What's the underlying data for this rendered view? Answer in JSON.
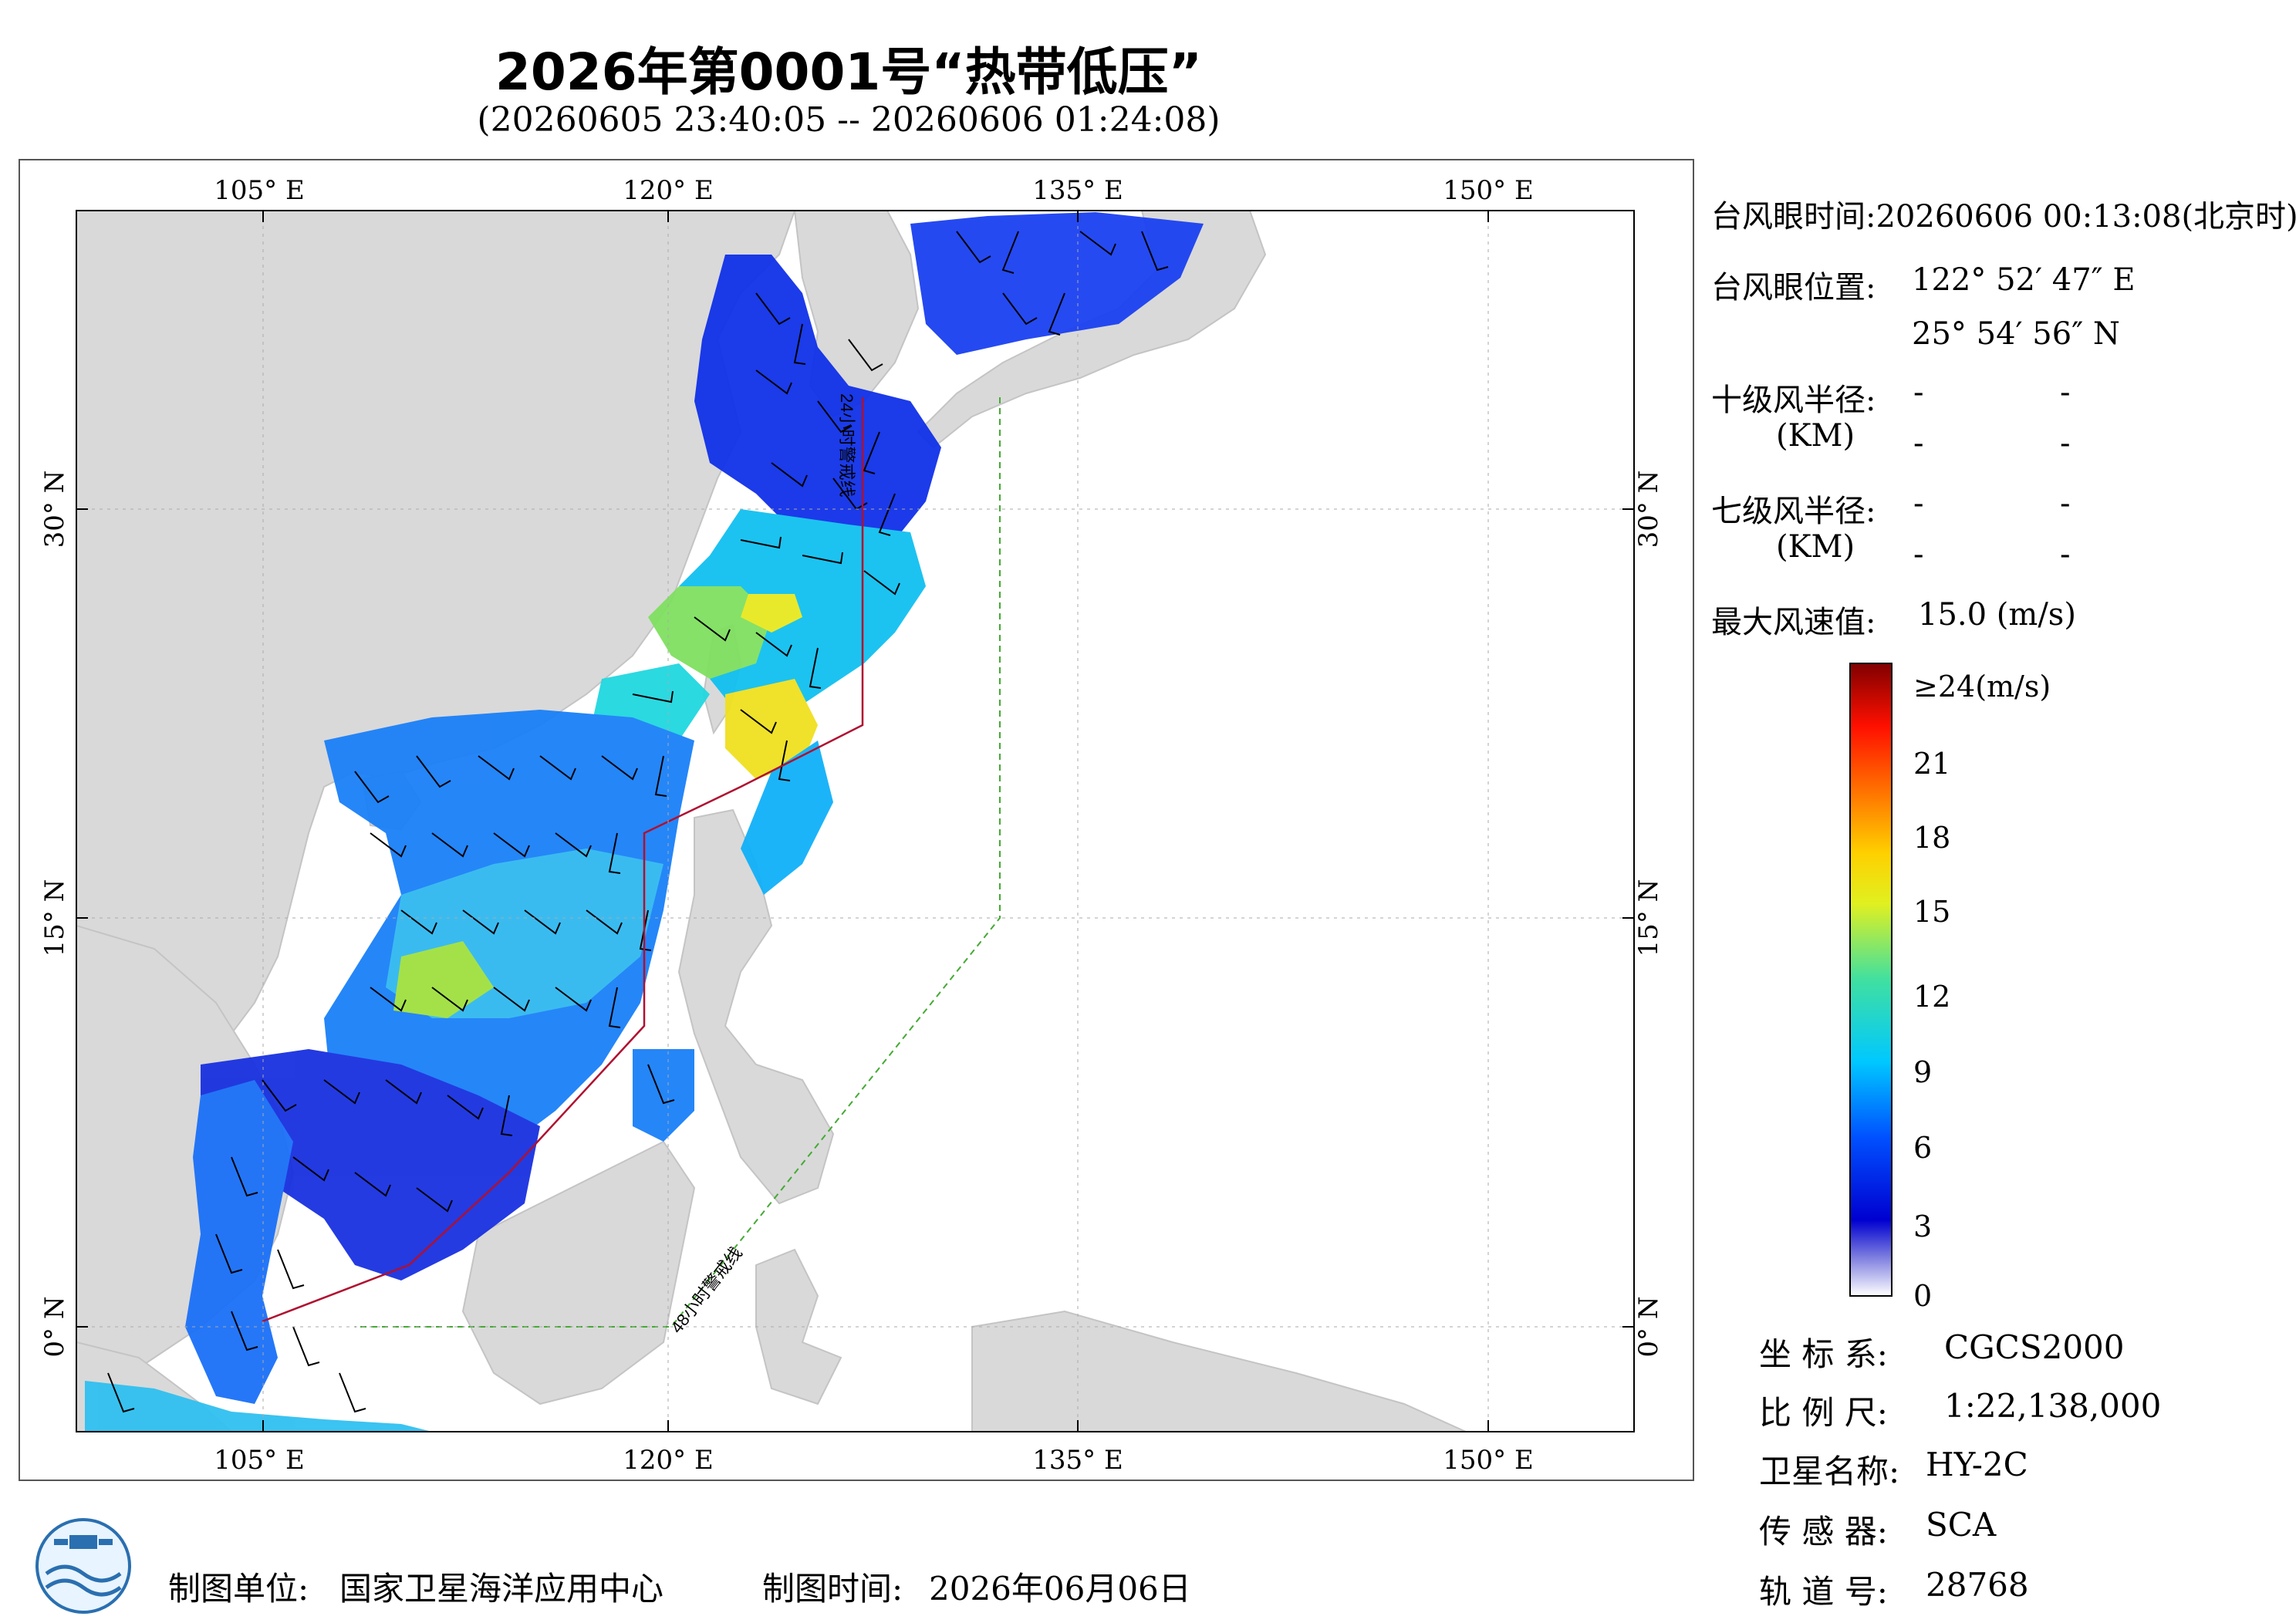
{
  "title": "2026年第0001号“热带低压”",
  "subtitle": "(20260605 23:40:05 -- 20260606 01:24:08)",
  "map": {
    "lon_ticks": [
      "105° E",
      "120° E",
      "135° E",
      "150° E"
    ],
    "lat_ticks": [
      "30° N",
      "15° N",
      "0° N"
    ],
    "warning_line_24": "24小时警戒线",
    "warning_line_48": "48小时警戒线",
    "colors": {
      "land": "#d9d9d9",
      "sea": "#ffffff",
      "line_24": "#b01030",
      "line_48": "#44aa33"
    }
  },
  "info": {
    "eye_time_label": "台风眼时间:",
    "eye_time_value": "20260606 00:13:08(北京时)",
    "eye_pos_label": "台风眼位置:",
    "eye_lon": "122° 52′ 47″ E",
    "eye_lat": "25° 54′ 56″ N",
    "r10_label": "十级风半径:",
    "r7_label": "七级风半径:",
    "km_label": "(KM)",
    "dash": "-",
    "max_wind_label": "最大风速值:",
    "max_wind_value": "15.0 (m/s)"
  },
  "colorbar": {
    "labels": [
      "≥24(m/s)",
      "21",
      "18",
      "15",
      "12",
      "9",
      "6",
      "3",
      "0"
    ]
  },
  "meta": {
    "crs_label": "坐 标 系:",
    "crs_value": "CGCS2000",
    "scale_label": "比 例 尺:",
    "scale_value": "1:22,138,000",
    "sat_label": "卫星名称:",
    "sat_value": "HY-2C",
    "sensor_label": "传 感 器:",
    "sensor_value": "SCA",
    "orbit_label": "轨 道 号:",
    "orbit_value": "28768"
  },
  "footer": {
    "unit_label": "制图单位:",
    "unit_value": "国家卫星海洋应用中心",
    "date_label": "制图时间:",
    "date_value": "2026年06月06日"
  }
}
